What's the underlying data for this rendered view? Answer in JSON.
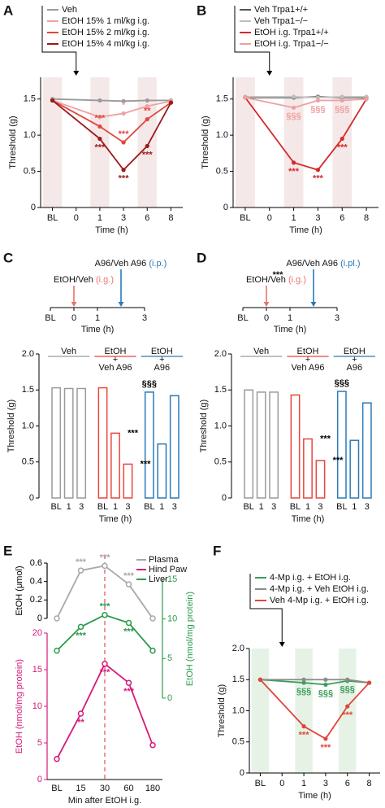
{
  "chart_data": [
    {
      "panel": "A",
      "type": "line",
      "ylabel": "Threshold (g)",
      "xlabel": "Time (h)",
      "xlim": [
        -0.5,
        5.5
      ],
      "xticks": [
        {
          "value": 0,
          "label": "BL"
        },
        {
          "value": 1,
          "label": "0"
        },
        {
          "value": 2,
          "label": "1"
        },
        3,
        {
          "value": 4,
          "label": "6"
        },
        {
          "value": 5,
          "label": "8"
        }
      ],
      "ylim": [
        0,
        1.8
      ],
      "yticks": [
        0,
        0.5,
        {
          "value": 1,
          "label": "1.0"
        },
        1.5
      ],
      "bands": [
        0,
        2,
        4
      ],
      "band_color": "#f5e8e8",
      "arrow_at": 1,
      "x": [
        0,
        2,
        3,
        4,
        5
      ],
      "series": [
        {
          "name": "Veh",
          "color": "#9a9a9a",
          "values": [
            1.5,
            1.48,
            1.47,
            1.48,
            1.48
          ]
        },
        {
          "name": "EtOH 15% 1 ml/kg i.g.",
          "color": "#f2a0a0",
          "values": [
            1.48,
            1.25,
            1.3,
            1.4,
            1.47
          ]
        },
        {
          "name": "EtOH 15% 2 ml/kg i.g.",
          "color": "#e0463e",
          "values": [
            1.48,
            1.12,
            0.9,
            1.22,
            1.45
          ]
        },
        {
          "name": "EtOH 15% 4 ml/kg i.g.",
          "color": "#9c1a1a",
          "values": [
            1.48,
            0.95,
            0.52,
            0.85,
            1.45
          ]
        }
      ],
      "annotations": [
        {
          "text": "***",
          "series": 3,
          "point": 1,
          "side": "below"
        },
        {
          "text": "***",
          "series": 3,
          "point": 2,
          "side": "below"
        },
        {
          "text": "***",
          "series": 3,
          "point": 3,
          "side": "below"
        },
        {
          "text": "***",
          "series": 2,
          "point": 1,
          "side": "above"
        },
        {
          "text": "***",
          "series": 2,
          "point": 2,
          "side": "above"
        },
        {
          "text": "**",
          "series": 2,
          "point": 3,
          "side": "above"
        },
        {
          "text": "*",
          "series": 1,
          "point": 2,
          "side": "above"
        }
      ]
    },
    {
      "panel": "B",
      "type": "line",
      "ylabel": "Threshold (g)",
      "xlabel": "Time (h)",
      "xlim": [
        -0.5,
        5.5
      ],
      "xticks": [
        {
          "value": 0,
          "label": "BL"
        },
        {
          "value": 1,
          "label": "0"
        },
        {
          "value": 2,
          "label": "1"
        },
        3,
        {
          "value": 4,
          "label": "6"
        },
        {
          "value": 5,
          "label": "8"
        }
      ],
      "ylim": [
        0,
        1.8
      ],
      "yticks": [
        0,
        0.5,
        {
          "value": 1,
          "label": "1.0"
        },
        1.5
      ],
      "bands": [
        0,
        2,
        4
      ],
      "band_color": "#f5e8e8",
      "arrow_at": 1,
      "x": [
        0,
        2,
        3,
        4,
        5
      ],
      "series": [
        {
          "name": "Veh Trpa1+/+",
          "color": "#555555",
          "values": [
            1.52,
            1.52,
            1.53,
            1.52,
            1.52
          ]
        },
        {
          "name": "Veh Trpa1−/−",
          "color": "#bdbdbd",
          "values": [
            1.53,
            1.53,
            1.52,
            1.53,
            1.53
          ]
        },
        {
          "name": "EtOH i.g. Trpa1+/+",
          "color": "#d42a2a",
          "values": [
            1.52,
            0.62,
            0.52,
            0.95,
            1.5
          ]
        },
        {
          "name": "EtOH i.g. Trpa1−/−",
          "color": "#f0a0a0",
          "values": [
            1.52,
            1.38,
            1.48,
            1.48,
            1.5
          ]
        }
      ],
      "annotations": [
        {
          "text": "§§§",
          "series": 3,
          "point": 1,
          "side": "below"
        },
        {
          "text": "§§§",
          "series": 3,
          "point": 2,
          "side": "below"
        },
        {
          "text": "§§§",
          "series": 3,
          "point": 3,
          "side": "below"
        },
        {
          "text": "***",
          "series": 2,
          "point": 1,
          "side": "below"
        },
        {
          "text": "***",
          "series": 2,
          "point": 2,
          "side": "below"
        },
        {
          "text": "***",
          "series": 2,
          "point": 3,
          "side": "below"
        }
      ]
    },
    {
      "panel": "C",
      "type": "bar_groups",
      "ylabel": "Threshold (g)",
      "xlabel": "Time (h)",
      "ylim": [
        0,
        2
      ],
      "yticks": [
        0,
        0.5,
        {
          "value": 1,
          "label": "1.0"
        },
        1.5,
        {
          "value": 2,
          "label": "2.0"
        }
      ],
      "categories": [
        "BL",
        "1",
        "3"
      ],
      "schematic": {
        "xlabel": "Time (h)",
        "ticks": [
          {
            "value": -1,
            "label": "BL"
          },
          0,
          1,
          3
        ],
        "arrows": [
          {
            "text": "EtOH/Veh",
            "route": "(i.g.)",
            "color": "#e8746a",
            "at": 0
          },
          {
            "text": "A96/Veh A96",
            "route": "(i.p.)",
            "color": "#2a7ab8",
            "at": 2
          }
        ]
      },
      "series": [
        {
          "name_lines": [
            "Veh"
          ],
          "color": "#9a9a9a",
          "values": [
            1.53,
            1.52,
            1.52
          ]
        },
        {
          "name_lines": [
            "EtOH",
            "+",
            "Veh A96"
          ],
          "color": "#e8463c",
          "values": [
            1.53,
            0.9,
            0.47
          ]
        },
        {
          "name_lines": [
            "EtOH",
            "+",
            "A96"
          ],
          "color": "#2a7ab8",
          "values": [
            1.47,
            0.75,
            1.42
          ]
        }
      ],
      "annotations": [
        {
          "text": "***",
          "series": 1,
          "point": 1,
          "side": "right"
        },
        {
          "text": "***",
          "series": 1,
          "point": 2,
          "side": "right"
        },
        {
          "text": "§§§",
          "series": 2,
          "point": 0,
          "side": "above"
        }
      ]
    },
    {
      "panel": "D",
      "type": "bar_groups",
      "ylabel": "Threshold (g)",
      "xlabel": "Time (h)",
      "ylim": [
        0,
        2
      ],
      "yticks": [
        0,
        0.5,
        {
          "value": 1,
          "label": "1.0"
        },
        1.5,
        {
          "value": 2,
          "label": "2.0"
        }
      ],
      "categories": [
        "BL",
        "1",
        "3"
      ],
      "schematic": {
        "xlabel": "Time (h)",
        "ticks": [
          {
            "value": -1,
            "label": "BL"
          },
          0,
          1,
          3
        ],
        "note": "***",
        "arrows": [
          {
            "text": "EtOH/Veh",
            "route": "(i.g.)",
            "color": "#e8746a",
            "at": 0
          },
          {
            "text": "A96/Veh A96",
            "route": "(i.pl.)",
            "color": "#2a7ab8",
            "at": 2
          }
        ]
      },
      "series": [
        {
          "name_lines": [
            "Veh"
          ],
          "color": "#9a9a9a",
          "values": [
            1.5,
            1.47,
            1.47
          ]
        },
        {
          "name_lines": [
            "EtOH",
            "+",
            "Veh A96"
          ],
          "color": "#e8463c",
          "values": [
            1.43,
            0.82,
            0.52
          ]
        },
        {
          "name_lines": [
            "EtOH",
            "+",
            "A96"
          ],
          "color": "#2a7ab8",
          "values": [
            1.48,
            0.8,
            1.32
          ]
        }
      ],
      "annotations": [
        {
          "text": "***",
          "series": 1,
          "point": 1,
          "side": "right"
        },
        {
          "text": "***",
          "series": 1,
          "point": 2,
          "side": "right"
        },
        {
          "text": "§§§",
          "series": 2,
          "point": 0,
          "side": "above"
        }
      ]
    },
    {
      "panel": "E",
      "type": "multi_axis",
      "xlabel": "Min after EtOH i.g.",
      "categories": [
        "BL",
        "15",
        "30",
        "60",
        "180"
      ],
      "vline": {
        "category": 2,
        "color": "#e05050"
      },
      "axes": [
        {
          "label": "EtOH (μmol)",
          "side": "left",
          "color": "#000000",
          "lim": [
            0,
            0.6
          ],
          "ticks": [
            0,
            0.2,
            0.4,
            0.6
          ]
        },
        {
          "label": "EtOH (nmol/mg protein)",
          "side": "left",
          "color": "#d6197a",
          "lim": [
            0,
            20
          ],
          "ticks": [
            0,
            5,
            10,
            15,
            20
          ]
        },
        {
          "label": "EtOH (nmol/mg protein)",
          "side": "right",
          "color": "#2a9a4a",
          "lim": [
            0,
            15
          ],
          "ticks": [
            0,
            5,
            10,
            15
          ]
        }
      ],
      "series": [
        {
          "name": "Plasma",
          "color": "#a8a8a8",
          "axis": 0,
          "values": [
            0,
            0.52,
            0.57,
            0.37,
            0
          ]
        },
        {
          "name": "Hind Paw",
          "color": "#d6197a",
          "axis": 1,
          "values": [
            2.8,
            9,
            15.8,
            13.2,
            4.7
          ]
        },
        {
          "name": "Liver",
          "color": "#2a9a4a",
          "axis": 2,
          "values": [
            6,
            9,
            10.5,
            9.5,
            6
          ]
        }
      ],
      "annotations": [
        {
          "text": "***",
          "series": 0,
          "point": 1,
          "side": "above"
        },
        {
          "text": "***",
          "series": 0,
          "point": 2,
          "side": "above"
        },
        {
          "text": "***",
          "series": 0,
          "point": 3,
          "side": "above"
        },
        {
          "text": "***",
          "series": 2,
          "point": 1,
          "side": "below"
        },
        {
          "text": "***",
          "series": 2,
          "point": 2,
          "side": "above"
        },
        {
          "text": "***",
          "series": 2,
          "point": 3,
          "side": "below"
        },
        {
          "text": "**",
          "series": 1,
          "point": 1,
          "side": "below"
        },
        {
          "text": "***",
          "series": 1,
          "point": 2,
          "side": "below"
        },
        {
          "text": "***",
          "series": 1,
          "point": 3,
          "side": "below"
        }
      ]
    },
    {
      "panel": "F",
      "type": "line",
      "ylabel": "Threshold (g)",
      "xlabel": "Time (h)",
      "xlim": [
        -0.5,
        5.5
      ],
      "xticks": [
        {
          "value": 0,
          "label": "BL"
        },
        {
          "value": 1,
          "label": "0"
        },
        {
          "value": 2,
          "label": "1"
        },
        3,
        {
          "value": 4,
          "label": "6"
        },
        {
          "value": 5,
          "label": "8"
        }
      ],
      "ylim": [
        0,
        2
      ],
      "yticks": [
        0,
        0.5,
        {
          "value": 1,
          "label": "1.0"
        },
        1.5,
        {
          "value": 2,
          "label": "2.0"
        }
      ],
      "bands": [
        0,
        2,
        4
      ],
      "band_color": "#e6f2e6",
      "arrow_at": 1,
      "x": [
        0,
        2,
        3,
        4,
        5
      ],
      "series": [
        {
          "name": "4-Mp i.g. + EtOH i.g.",
          "color": "#3a9e58",
          "values": [
            1.5,
            1.45,
            1.42,
            1.48,
            1.45
          ]
        },
        {
          "name": "4-Mp i.g. + Veh EtOH i.g.",
          "color": "#8a8a8a",
          "values": [
            1.5,
            1.5,
            1.5,
            1.5,
            1.45
          ]
        },
        {
          "name": "Veh 4-Mp i.g. + EtOH i.g.",
          "color": "#e0453a",
          "values": [
            1.5,
            0.75,
            0.55,
            1.07,
            1.45
          ]
        }
      ],
      "annotations": [
        {
          "text": "***",
          "series": 2,
          "point": 1,
          "side": "below"
        },
        {
          "text": "***",
          "series": 2,
          "point": 2,
          "side": "below"
        },
        {
          "text": "***",
          "series": 2,
          "point": 3,
          "side": "below"
        },
        {
          "text": "§§§",
          "series": 0,
          "point": 1,
          "side": "below"
        },
        {
          "text": "§§§",
          "series": 0,
          "point": 2,
          "side": "below"
        },
        {
          "text": "§§§",
          "series": 0,
          "point": 3,
          "side": "below"
        }
      ]
    }
  ]
}
